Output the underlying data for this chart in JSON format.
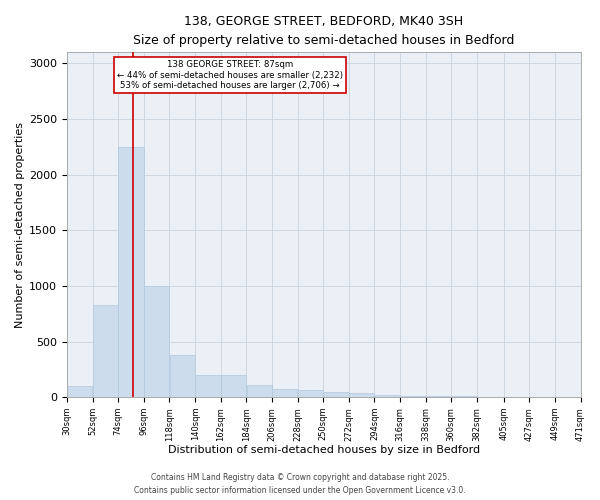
{
  "title1": "138, GEORGE STREET, BEDFORD, MK40 3SH",
  "title2": "Size of property relative to semi-detached houses in Bedford",
  "xlabel": "Distribution of semi-detached houses by size in Bedford",
  "ylabel": "Number of semi-detached properties",
  "annotation_title": "138 GEORGE STREET: 87sqm",
  "annotation_line1": "← 44% of semi-detached houses are smaller (2,232)",
  "annotation_line2": "53% of semi-detached houses are larger (2,706) →",
  "property_size": 87,
  "bar_color": "#ccdcec",
  "bar_edge_color": "#b0c8de",
  "vline_color": "#cc0000",
  "vline_position": 87,
  "annotation_box_color": "#ffffff",
  "annotation_box_edge": "#cc0000",
  "grid_color": "#c8d4e0",
  "bg_color": "#eaf0f6",
  "footer1": "Contains HM Land Registry data © Crown copyright and database right 2025.",
  "footer2": "Contains public sector information licensed under the Open Government Licence v3.0.",
  "bin_edges": [
    30,
    52,
    74,
    96,
    118,
    140,
    162,
    184,
    206,
    228,
    250,
    272,
    294,
    316,
    338,
    360,
    382,
    405,
    427,
    449,
    471
  ],
  "bin_counts": [
    100,
    830,
    2250,
    1000,
    380,
    195,
    195,
    110,
    75,
    65,
    50,
    35,
    20,
    10,
    8,
    6,
    4,
    3,
    2,
    1
  ],
  "ylim": [
    0,
    3100
  ],
  "yticks": [
    0,
    500,
    1000,
    1500,
    2000,
    2500,
    3000
  ]
}
